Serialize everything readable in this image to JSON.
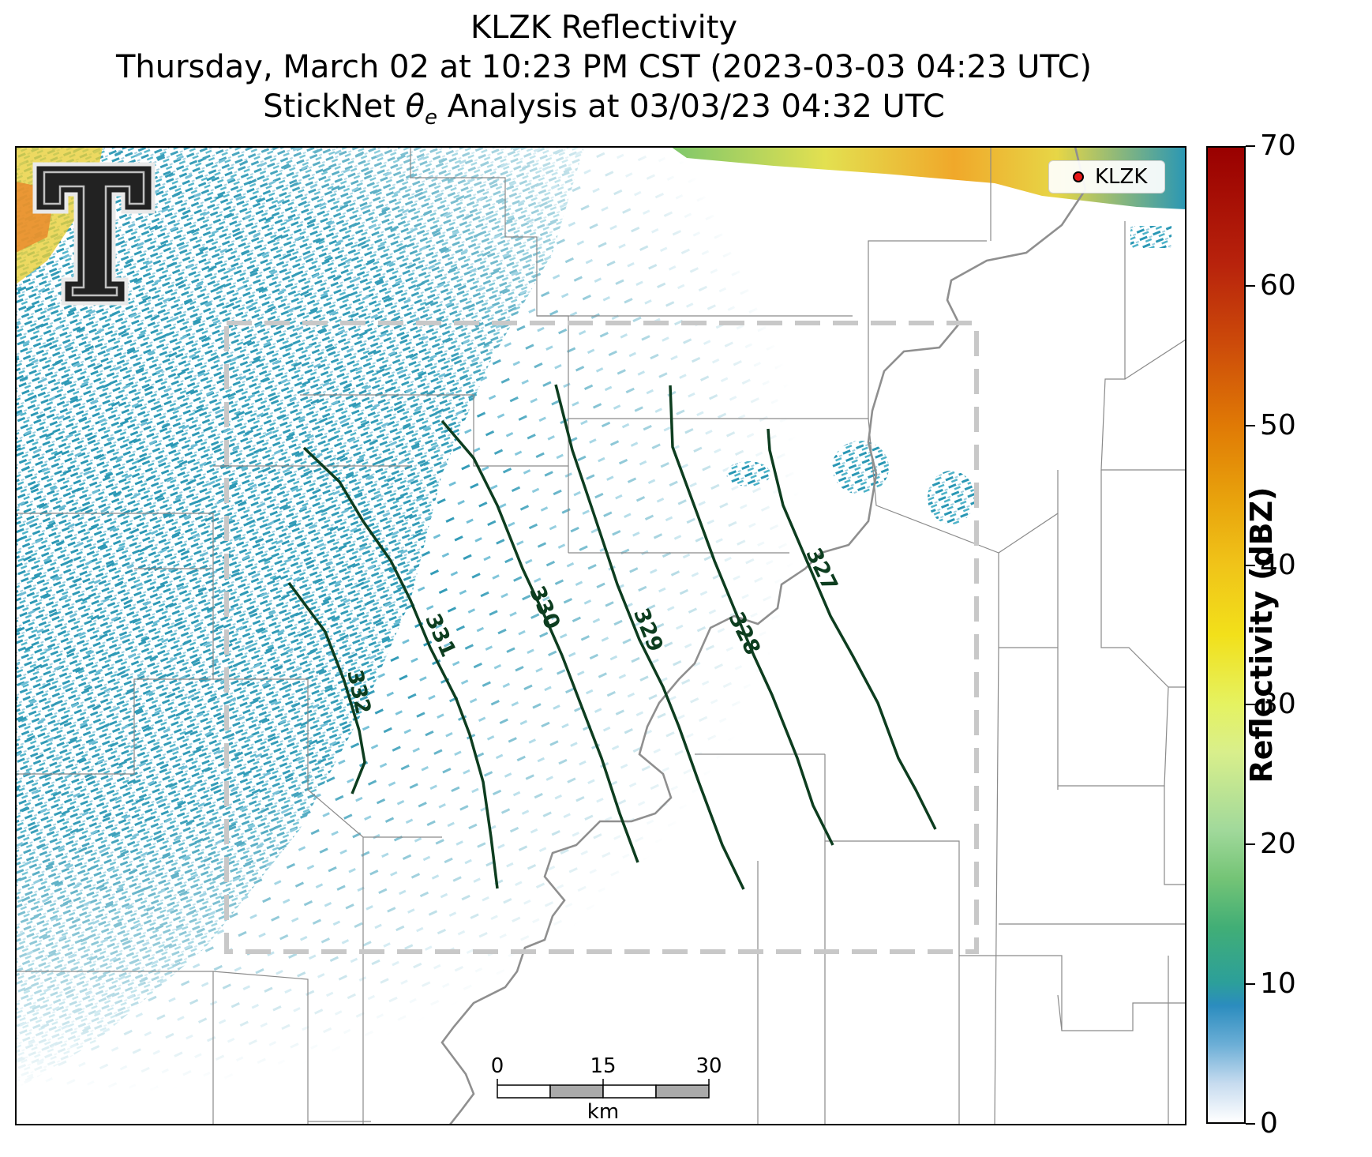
{
  "title": {
    "line1": "KLZK Reflectivity",
    "line2": "Thursday, March 02 at 10:23 PM CST (2023-03-03 04:23 UTC)",
    "line3_prefix": "StickNet ",
    "line3_symbol": "θ",
    "line3_subscript": "e",
    "line3_suffix": " Analysis at 03/03/23 04:32 UTC"
  },
  "legend": {
    "label": "KLZK",
    "marker_color": "#e81818"
  },
  "colorbar": {
    "label": "Reflectivity (dBZ)",
    "range": [
      0,
      70
    ],
    "ticks": [
      "0",
      "10",
      "20",
      "30",
      "40",
      "50",
      "60",
      "70"
    ]
  },
  "scale_bar": {
    "ticks": [
      "0",
      "15",
      "30"
    ],
    "unit": "km"
  },
  "contours": {
    "color": "#0d3d1f",
    "labels": [
      "332",
      "331",
      "330",
      "329",
      "328",
      "327"
    ]
  },
  "analysis_box": {
    "style": "dashed",
    "color": "#c8c8c8"
  },
  "logo": {
    "name": "Texas Tech double-T logo",
    "letter": "T"
  }
}
